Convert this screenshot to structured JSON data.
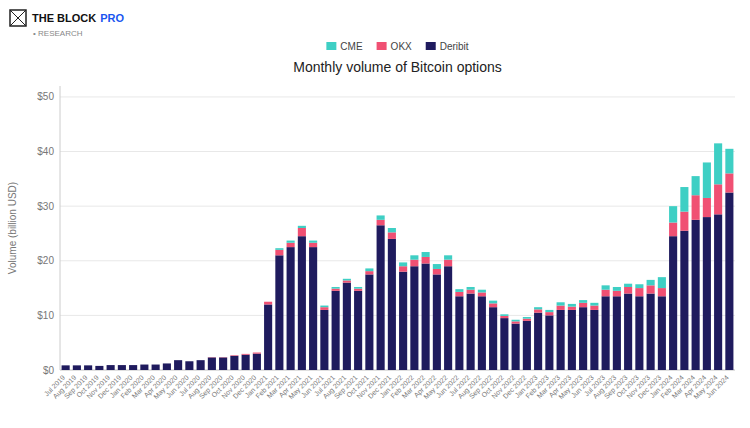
{
  "chart_data": {
    "type": "bar",
    "stacked": true,
    "title": "Monthly volume of Bitcoin options",
    "y_label": "Volume (billion USD)",
    "annotations": [
      {
        "text": "THE BLOCK",
        "color": "#111111"
      },
      {
        "text": "PRO",
        "color": "#1a56f0"
      },
      {
        "text": "• RESEARCH",
        "color": "#888888"
      }
    ],
    "categories": [
      "Jul 2019",
      "Aug 2019",
      "Sep 2019",
      "Oct 2019",
      "Nov 2019",
      "Dec 2019",
      "Jan 2020",
      "Feb 2020",
      "Mar 2020",
      "Apr 2020",
      "May 2020",
      "Jun 2020",
      "Jul 2020",
      "Aug 2020",
      "Sep 2020",
      "Oct 2020",
      "Nov 2020",
      "Dec 2020",
      "Jan 2021",
      "Feb 2021",
      "Mar 2021",
      "Apr 2021",
      "May 2021",
      "Jun 2021",
      "Jul 2021",
      "Aug 2021",
      "Sep 2021",
      "Oct 2021",
      "Nov 2021",
      "Dec 2021",
      "Jan 2022",
      "Feb 2022",
      "Mar 2022",
      "Apr 2022",
      "May 2022",
      "Jun 2022",
      "Jul 2022",
      "Aug 2022",
      "Sep 2022",
      "Oct 2022",
      "Nov 2022",
      "Dec 2022",
      "Jan 2023",
      "Feb 2023",
      "Mar 2023",
      "Apr 2023",
      "May 2023",
      "Jun 2023",
      "Jul 2023",
      "Aug 2023",
      "Sep 2023",
      "Oct 2023",
      "Nov 2023",
      "Dec 2023",
      "Jan 2024",
      "Feb 2024",
      "Mar 2024",
      "Apr 2024",
      "May 2024",
      "Jun 2024"
    ],
    "series": [
      {
        "name": "Deribit",
        "color": "#1f1b5e",
        "values": [
          0.85,
          0.85,
          0.85,
          0.75,
          0.9,
          0.9,
          0.9,
          1.0,
          1.0,
          1.2,
          1.8,
          1.6,
          1.8,
          2.3,
          2.3,
          2.6,
          2.8,
          3.0,
          12.0,
          21.0,
          22.5,
          24.5,
          22.5,
          11.0,
          14.5,
          16.0,
          14.5,
          17.5,
          26.5,
          24.0,
          18.0,
          19.0,
          19.5,
          17.5,
          19.0,
          13.5,
          14.0,
          13.5,
          11.5,
          9.5,
          8.5,
          9.0,
          10.5,
          10.0,
          11.0,
          11.0,
          11.5,
          11.0,
          13.5,
          13.5,
          14.0,
          13.5,
          14.0,
          13.5,
          24.5,
          25.5,
          27.5,
          28.0,
          28.5,
          32.5
        ]
      },
      {
        "name": "OKX",
        "color": "#f05073",
        "values": [
          0.0,
          0.0,
          0.0,
          0.0,
          0.0,
          0.0,
          0.0,
          0.0,
          0.0,
          0.0,
          0.0,
          0.0,
          0.0,
          0.05,
          0.05,
          0.1,
          0.15,
          0.2,
          0.5,
          1.0,
          0.8,
          1.5,
          0.8,
          0.5,
          0.4,
          0.4,
          0.4,
          0.6,
          1.0,
          1.2,
          1.0,
          1.2,
          1.2,
          1.0,
          1.2,
          0.8,
          0.7,
          0.7,
          0.7,
          0.4,
          0.4,
          0.4,
          0.6,
          0.6,
          0.8,
          0.6,
          0.8,
          0.8,
          1.2,
          1.0,
          1.2,
          1.5,
          1.5,
          1.5,
          2.5,
          3.5,
          4.5,
          3.5,
          5.5,
          3.5
        ]
      },
      {
        "name": "CME",
        "color": "#3ecfc4",
        "values": [
          0.0,
          0.0,
          0.0,
          0.0,
          0.0,
          0.0,
          0.0,
          0.0,
          0.0,
          0.0,
          0.0,
          0.0,
          0.0,
          0.0,
          0.0,
          0.0,
          0.0,
          0.0,
          0.0,
          0.3,
          0.4,
          0.4,
          0.4,
          0.3,
          0.3,
          0.3,
          0.3,
          0.5,
          0.8,
          0.8,
          0.7,
          0.8,
          0.9,
          0.9,
          0.8,
          0.5,
          0.5,
          0.5,
          0.5,
          0.3,
          0.3,
          0.3,
          0.4,
          0.4,
          0.6,
          0.5,
          0.5,
          0.5,
          0.8,
          0.7,
          0.6,
          0.7,
          1.0,
          2.0,
          3.0,
          4.5,
          3.5,
          6.5,
          7.5,
          4.5
        ]
      }
    ],
    "ylim": [
      0,
      52
    ],
    "yticks": [
      {
        "value": 0,
        "label": "$0"
      },
      {
        "value": 10,
        "label": "$10"
      },
      {
        "value": 20,
        "label": "$20"
      },
      {
        "value": 30,
        "label": "$30"
      },
      {
        "value": 40,
        "label": "$40"
      },
      {
        "value": 50,
        "label": "$50"
      }
    ],
    "grid": true,
    "legend": "top"
  }
}
